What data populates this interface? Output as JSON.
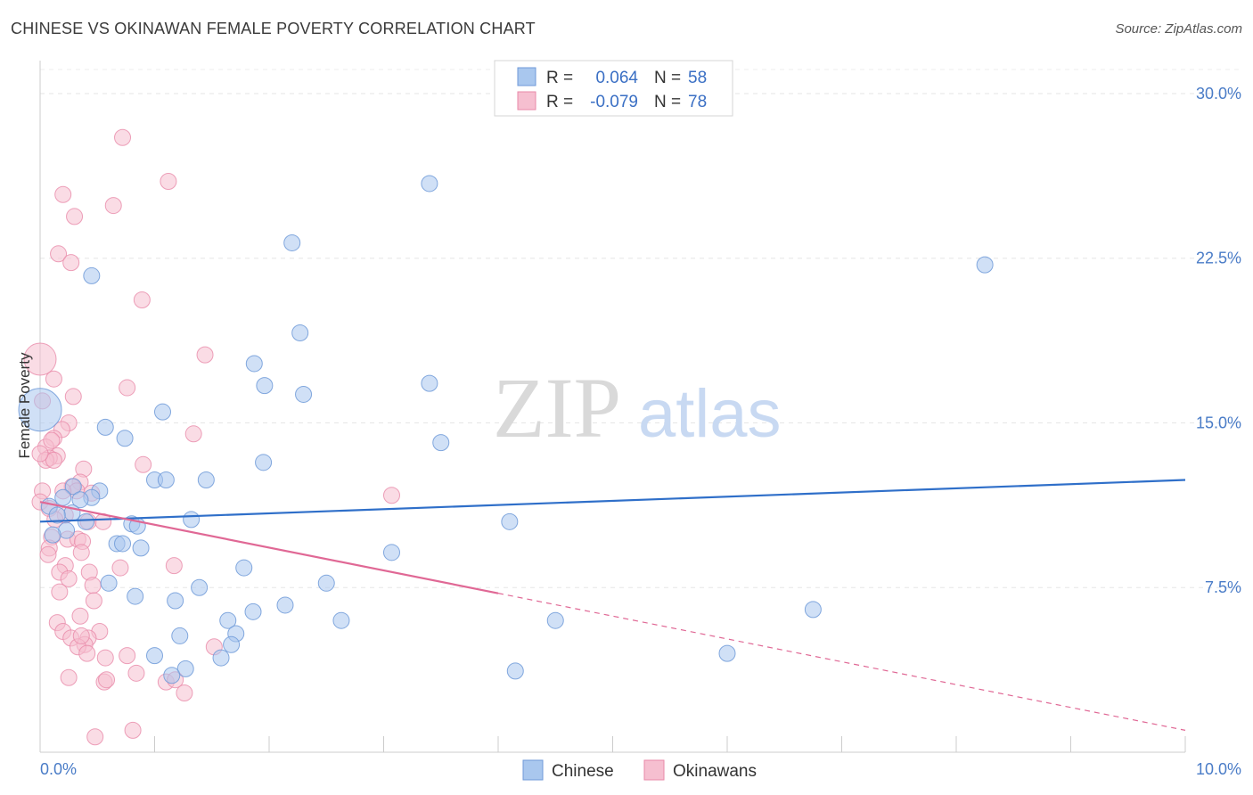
{
  "title": "CHINESE VS OKINAWAN FEMALE POVERTY CORRELATION CHART",
  "source": "Source: ZipAtlas.com",
  "watermark": {
    "zip": "ZIP",
    "atlas": "atlas"
  },
  "legend": [
    {
      "r_label": "R =",
      "r_value": "0.064",
      "n_label": "N =",
      "n_value": "58"
    },
    {
      "r_label": "R =",
      "r_value": "-0.079",
      "n_label": "N =",
      "n_value": "78"
    }
  ],
  "chart_data": {
    "type": "scatter",
    "title": "CHINESE VS OKINAWAN FEMALE POVERTY CORRELATION CHART",
    "xlabel": "",
    "ylabel": "Female Poverty",
    "xlim": [
      0,
      10
    ],
    "ylim": [
      0,
      31.5
    ],
    "x_tick_labels": [
      "0.0%",
      "10.0%"
    ],
    "y_ticks": [
      7.5,
      15.0,
      22.5,
      30.0
    ],
    "y_tick_labels": [
      "7.5%",
      "15.0%",
      "22.5%",
      "30.0%"
    ],
    "colors": {
      "chinese": "#a9c7ee",
      "chinese_edge": "#6f9ad8",
      "chinese_line": "#2f6fc9",
      "okinawan": "#f6bfd0",
      "okinawan_edge": "#e88aa9",
      "okinawan_line": "#e06895"
    },
    "series": [
      {
        "name": "Chinese",
        "r": 0.064,
        "n": 58,
        "trend": {
          "x": [
            0,
            10
          ],
          "y": [
            10.5,
            12.4
          ],
          "dashed_from": null
        },
        "points": [
          [
            0.0,
            15.6,
            24
          ],
          [
            0.45,
            21.7,
            9
          ],
          [
            2.2,
            23.2,
            9
          ],
          [
            3.4,
            25.9,
            9
          ],
          [
            8.25,
            22.2,
            9
          ],
          [
            2.27,
            19.1,
            9
          ],
          [
            1.87,
            17.7,
            9
          ],
          [
            3.4,
            16.8,
            9
          ],
          [
            1.96,
            16.7,
            9
          ],
          [
            2.3,
            16.3,
            9
          ],
          [
            1.07,
            15.5,
            9
          ],
          [
            0.57,
            14.8,
            9
          ],
          [
            0.74,
            14.3,
            9
          ],
          [
            3.5,
            14.1,
            9
          ],
          [
            1.95,
            13.2,
            9
          ],
          [
            1.0,
            12.4,
            9
          ],
          [
            1.1,
            12.4,
            9
          ],
          [
            1.45,
            12.4,
            9
          ],
          [
            0.29,
            12.1,
            9
          ],
          [
            0.52,
            11.9,
            9
          ],
          [
            0.45,
            11.6,
            9
          ],
          [
            0.2,
            11.6,
            9
          ],
          [
            0.35,
            11.5,
            9
          ],
          [
            0.08,
            11.2,
            9
          ],
          [
            0.28,
            10.9,
            9
          ],
          [
            0.15,
            10.8,
            9
          ],
          [
            0.4,
            10.5,
            9
          ],
          [
            0.8,
            10.4,
            9
          ],
          [
            0.85,
            10.3,
            9
          ],
          [
            1.32,
            10.6,
            9
          ],
          [
            4.1,
            10.5,
            9
          ],
          [
            0.23,
            10.1,
            9
          ],
          [
            0.11,
            9.9,
            9
          ],
          [
            0.67,
            9.5,
            9
          ],
          [
            0.72,
            9.5,
            9
          ],
          [
            0.88,
            9.3,
            9
          ],
          [
            3.07,
            9.1,
            9
          ],
          [
            1.78,
            8.4,
            9
          ],
          [
            0.6,
            7.7,
            9
          ],
          [
            1.39,
            7.5,
            9
          ],
          [
            2.5,
            7.7,
            9
          ],
          [
            0.83,
            7.1,
            9
          ],
          [
            1.18,
            6.9,
            9
          ],
          [
            2.14,
            6.7,
            9
          ],
          [
            1.86,
            6.4,
            9
          ],
          [
            1.64,
            6.0,
            9
          ],
          [
            2.63,
            6.0,
            9
          ],
          [
            4.5,
            6.0,
            9
          ],
          [
            6.75,
            6.5,
            9
          ],
          [
            1.71,
            5.4,
            9
          ],
          [
            1.22,
            5.3,
            9
          ],
          [
            1.67,
            4.9,
            9
          ],
          [
            1.58,
            4.3,
            9
          ],
          [
            1.0,
            4.4,
            9
          ],
          [
            6.0,
            4.5,
            9
          ],
          [
            1.27,
            3.8,
            9
          ],
          [
            1.15,
            3.5,
            9
          ],
          [
            4.15,
            3.7,
            9
          ]
        ]
      },
      {
        "name": "Okinawans",
        "r": -0.079,
        "n": 78,
        "trend": {
          "x": [
            0,
            10
          ],
          "y": [
            11.4,
            1.0
          ],
          "dashed_from": 4.0
        },
        "points": [
          [
            0.0,
            17.9,
            18
          ],
          [
            0.72,
            28.0,
            9
          ],
          [
            1.12,
            26.0,
            9
          ],
          [
            0.2,
            25.4,
            9
          ],
          [
            0.64,
            24.9,
            9
          ],
          [
            0.3,
            24.4,
            9
          ],
          [
            0.16,
            22.7,
            9
          ],
          [
            0.27,
            22.3,
            9
          ],
          [
            0.89,
            20.6,
            9
          ],
          [
            1.44,
            18.1,
            9
          ],
          [
            0.12,
            17.0,
            9
          ],
          [
            0.76,
            16.6,
            9
          ],
          [
            0.29,
            16.2,
            9
          ],
          [
            0.02,
            16.0,
            9
          ],
          [
            0.25,
            15.0,
            9
          ],
          [
            0.19,
            14.7,
            9
          ],
          [
            1.34,
            14.5,
            9
          ],
          [
            0.12,
            14.3,
            9
          ],
          [
            0.05,
            13.9,
            9
          ],
          [
            0.15,
            13.5,
            9
          ],
          [
            0.08,
            13.4,
            9
          ],
          [
            0.05,
            13.3,
            9
          ],
          [
            0.12,
            13.3,
            9
          ],
          [
            0.9,
            13.1,
            9
          ],
          [
            0.38,
            12.9,
            9
          ],
          [
            0.35,
            12.3,
            9
          ],
          [
            0.28,
            12.1,
            9
          ],
          [
            0.32,
            11.9,
            9
          ],
          [
            0.2,
            11.9,
            9
          ],
          [
            0.45,
            11.8,
            9
          ],
          [
            3.07,
            11.7,
            9
          ],
          [
            0.02,
            11.9,
            9
          ],
          [
            0.0,
            11.4,
            9
          ],
          [
            0.08,
            11.1,
            9
          ],
          [
            0.22,
            10.8,
            9
          ],
          [
            0.13,
            10.6,
            9
          ],
          [
            0.42,
            10.5,
            9
          ],
          [
            0.55,
            10.5,
            9
          ],
          [
            0.1,
            9.8,
            9
          ],
          [
            0.24,
            9.7,
            9
          ],
          [
            0.33,
            9.7,
            9
          ],
          [
            0.37,
            9.6,
            9
          ],
          [
            0.08,
            9.3,
            9
          ],
          [
            0.36,
            9.1,
            9
          ],
          [
            0.07,
            9.0,
            9
          ],
          [
            0.22,
            8.5,
            9
          ],
          [
            0.7,
            8.4,
            9
          ],
          [
            1.17,
            8.5,
            9
          ],
          [
            0.17,
            8.2,
            9
          ],
          [
            0.43,
            8.2,
            9
          ],
          [
            0.25,
            7.9,
            9
          ],
          [
            0.46,
            7.6,
            9
          ],
          [
            0.17,
            7.3,
            9
          ],
          [
            0.47,
            6.9,
            9
          ],
          [
            0.35,
            6.2,
            9
          ],
          [
            0.15,
            5.9,
            9
          ],
          [
            0.2,
            5.5,
            9
          ],
          [
            0.52,
            5.5,
            9
          ],
          [
            0.27,
            5.2,
            9
          ],
          [
            0.42,
            5.2,
            9
          ],
          [
            0.39,
            4.9,
            9
          ],
          [
            0.33,
            4.8,
            9
          ],
          [
            0.36,
            5.3,
            9
          ],
          [
            1.52,
            4.8,
            9
          ],
          [
            0.41,
            4.5,
            9
          ],
          [
            0.57,
            4.3,
            9
          ],
          [
            0.76,
            4.4,
            9
          ],
          [
            0.84,
            3.6,
            9
          ],
          [
            0.25,
            3.4,
            9
          ],
          [
            0.56,
            3.2,
            9
          ],
          [
            0.58,
            3.3,
            9
          ],
          [
            1.1,
            3.2,
            9
          ],
          [
            1.18,
            3.3,
            9
          ],
          [
            1.26,
            2.7,
            9
          ],
          [
            0.48,
            0.7,
            9
          ],
          [
            0.81,
            1.0,
            9
          ],
          [
            0.1,
            14.2,
            9
          ],
          [
            0.0,
            13.6,
            9
          ]
        ]
      }
    ]
  }
}
